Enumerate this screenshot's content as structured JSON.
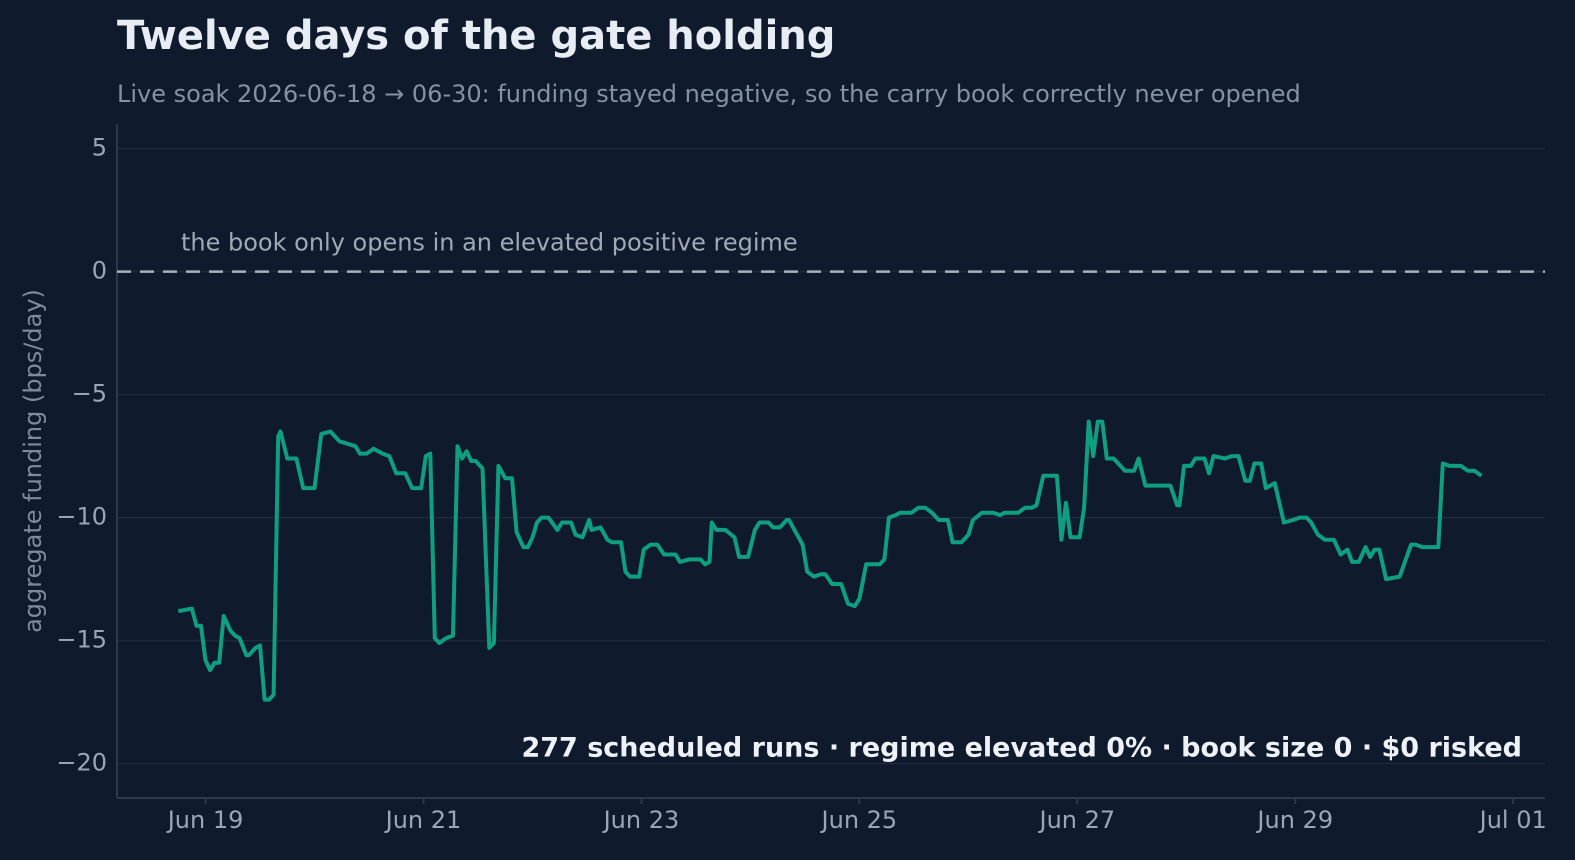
{
  "chart_data": {
    "type": "line",
    "title": "Twelve days of the gate holding",
    "subtitle": "Live soak 2026-06-18 → 06-30: funding stayed negative, so the carry book correctly never opened",
    "y_label": "aggregate funding (bps/day)",
    "annotation": "277 scheduled runs · regime elevated 0% · book size 0 · $0 risked",
    "reference_line": {
      "value": 0,
      "label": "the book only opens in an elevated positive regime"
    },
    "xlim": [
      "2026-06-18T04:30",
      "2026-07-01T07:00"
    ],
    "xticks": [
      {
        "value": "2026-06-19T00:00",
        "label": "Jun 19"
      },
      {
        "value": "2026-06-21T00:00",
        "label": "Jun 21"
      },
      {
        "value": "2026-06-23T00:00",
        "label": "Jun 23"
      },
      {
        "value": "2026-06-25T00:00",
        "label": "Jun 25"
      },
      {
        "value": "2026-06-27T00:00",
        "label": "Jun 27"
      },
      {
        "value": "2026-06-29T00:00",
        "label": "Jun 29"
      },
      {
        "value": "2026-07-01T00:00",
        "label": "Jul 01"
      }
    ],
    "ylim": [
      -21.4,
      6
    ],
    "yticks": [
      {
        "value": -20,
        "label": "−20"
      },
      {
        "value": -15,
        "label": "−15"
      },
      {
        "value": -10,
        "label": "−10"
      },
      {
        "value": -5,
        "label": "−5"
      },
      0,
      5
    ],
    "grid": true,
    "x": [
      "2026-06-18T18:00",
      "2026-06-18T21:00",
      "2026-06-18T22:00",
      "2026-06-18T23:00",
      "2026-06-19T00:00",
      "2026-06-19T01:00",
      "2026-06-19T02:00",
      "2026-06-19T03:00",
      "2026-06-19T04:00",
      "2026-06-19T05:30",
      "2026-06-19T06:30",
      "2026-06-19T07:30",
      "2026-06-19T09:00",
      "2026-06-19T09:30",
      "2026-06-19T11:00",
      "2026-06-19T12:00",
      "2026-06-19T13:00",
      "2026-06-19T14:00",
      "2026-06-19T15:00",
      "2026-06-19T16:00",
      "2026-06-19T16:30",
      "2026-06-19T18:00",
      "2026-06-19T20:00",
      "2026-06-19T21:30",
      "2026-06-20T00:00",
      "2026-06-20T01:30",
      "2026-06-20T03:30",
      "2026-06-20T05:30",
      "2026-06-20T09:00",
      "2026-06-20T10:00",
      "2026-06-20T11:30",
      "2026-06-20T13:00",
      "2026-06-20T15:00",
      "2026-06-20T16:30",
      "2026-06-20T18:00",
      "2026-06-20T20:00",
      "2026-06-20T21:30",
      "2026-06-20T23:30",
      "2026-06-21T00:30",
      "2026-06-21T01:30",
      "2026-06-21T02:30",
      "2026-06-21T03:30",
      "2026-06-21T05:00",
      "2026-06-21T06:30",
      "2026-06-21T07:30",
      "2026-06-21T08:30",
      "2026-06-21T09:30",
      "2026-06-21T10:30",
      "2026-06-21T11:30",
      "2026-06-21T13:00",
      "2026-06-21T14:30",
      "2026-06-21T15:30",
      "2026-06-21T16:30",
      "2026-06-21T18:00",
      "2026-06-21T19:30",
      "2026-06-21T20:30",
      "2026-06-21T22:00",
      "2026-06-21T23:00",
      "2026-06-22T00:00",
      "2026-06-22T01:00",
      "2026-06-22T02:00",
      "2026-06-22T03:30",
      "2026-06-22T05:30",
      "2026-06-22T06:30",
      "2026-06-22T08:30",
      "2026-06-22T09:30",
      "2026-06-22T11:00",
      "2026-06-22T12:30",
      "2026-06-22T13:00",
      "2026-06-22T15:00",
      "2026-06-22T16:30",
      "2026-06-22T17:30",
      "2026-06-22T19:30",
      "2026-06-22T20:30",
      "2026-06-22T21:30",
      "2026-06-22T23:30",
      "2026-06-23T00:30",
      "2026-06-23T02:00",
      "2026-06-23T03:30",
      "2026-06-23T05:00",
      "2026-06-23T07:30",
      "2026-06-23T08:30",
      "2026-06-23T10:30",
      "2026-06-23T13:00",
      "2026-06-23T14:00",
      "2026-06-23T15:00",
      "2026-06-23T15:30",
      "2026-06-23T16:30",
      "2026-06-23T18:30",
      "2026-06-23T20:30",
      "2026-06-23T21:30",
      "2026-06-23T23:30",
      "2026-06-24T01:00",
      "2026-06-24T02:00",
      "2026-06-24T04:00",
      "2026-06-24T05:00",
      "2026-06-24T06:30",
      "2026-06-24T08:00",
      "2026-06-24T08:30",
      "2026-06-24T10:00",
      "2026-06-24T11:30",
      "2026-06-24T12:30",
      "2026-06-24T14:00",
      "2026-06-24T15:30",
      "2026-06-24T16:30",
      "2026-06-24T18:00",
      "2026-06-24T20:00",
      "2026-06-24T21:30",
      "2026-06-24T23:00",
      "2026-06-25T00:00",
      "2026-06-25T01:30",
      "2026-06-25T04:30",
      "2026-06-25T05:30",
      "2026-06-25T06:30",
      "2026-06-25T08:00",
      "2026-06-25T09:00",
      "2026-06-25T11:30",
      "2026-06-25T13:00",
      "2026-06-25T14:30",
      "2026-06-25T16:00",
      "2026-06-25T17:30",
      "2026-06-25T19:30",
      "2026-06-25T20:30",
      "2026-06-25T22:30",
      "2026-06-26T00:00",
      "2026-06-26T01:00",
      "2026-06-26T03:00",
      "2026-06-26T05:30",
      "2026-06-26T07:00",
      "2026-06-26T08:00",
      "2026-06-26T11:00",
      "2026-06-26T12:30",
      "2026-06-26T14:00",
      "2026-06-26T15:00",
      "2026-06-26T16:30",
      "2026-06-26T19:30",
      "2026-06-26T20:30",
      "2026-06-26T21:30",
      "2026-06-26T22:30",
      "2026-06-27T00:30",
      "2026-06-27T01:30",
      "2026-06-27T02:30",
      "2026-06-27T03:30",
      "2026-06-27T04:30",
      "2026-06-27T05:30",
      "2026-06-27T06:30",
      "2026-06-27T08:00",
      "2026-06-27T09:30",
      "2026-06-27T10:30",
      "2026-06-27T12:30",
      "2026-06-27T13:30",
      "2026-06-27T15:00",
      "2026-06-27T20:30",
      "2026-06-27T22:00",
      "2026-06-27T22:30",
      "2026-06-27T23:30",
      "2026-06-28T01:00",
      "2026-06-28T02:00",
      "2026-06-28T04:00",
      "2026-06-28T05:00",
      "2026-06-28T06:00",
      "2026-06-28T08:30",
      "2026-06-28T10:00",
      "2026-06-28T11:30",
      "2026-06-28T13:00",
      "2026-06-28T14:00",
      "2026-06-28T15:00",
      "2026-06-28T16:30",
      "2026-06-28T17:30",
      "2026-06-28T19:30",
      "2026-06-28T21:30",
      "2026-06-28T23:30",
      "2026-06-29T01:00",
      "2026-06-29T02:30",
      "2026-06-29T03:30",
      "2026-06-29T05:00",
      "2026-06-29T06:30",
      "2026-06-29T08:30",
      "2026-06-29T10:00",
      "2026-06-29T11:30",
      "2026-06-29T12:30",
      "2026-06-29T14:00",
      "2026-06-29T15:30",
      "2026-06-29T16:30",
      "2026-06-29T17:30",
      "2026-06-29T18:30",
      "2026-06-29T20:00",
      "2026-06-29T23:00",
      "2026-06-30T01:30",
      "2026-06-30T02:30",
      "2026-06-30T04:00",
      "2026-06-30T07:30",
      "2026-06-30T08:30",
      "2026-06-30T10:00",
      "2026-06-30T12:30",
      "2026-06-30T14:00",
      "2026-06-30T15:30",
      "2026-06-30T17:00"
    ],
    "series": [
      {
        "name": "aggregate funding",
        "color": "#0f9e80",
        "values": [
          -13.8,
          -13.7,
          -14.4,
          -14.4,
          -15.8,
          -16.2,
          -15.9,
          -15.9,
          -14.0,
          -14.6,
          -14.8,
          -14.9,
          -15.6,
          -15.6,
          -15.3,
          -15.2,
          -17.4,
          -17.4,
          -17.2,
          -6.7,
          -6.5,
          -7.6,
          -7.6,
          -8.8,
          -8.8,
          -6.6,
          -6.5,
          -6.9,
          -7.1,
          -7.4,
          -7.4,
          -7.2,
          -7.4,
          -7.5,
          -8.2,
          -8.2,
          -8.8,
          -8.8,
          -7.5,
          -7.4,
          -14.9,
          -15.1,
          -14.9,
          -14.8,
          -7.1,
          -7.6,
          -7.3,
          -7.7,
          -7.7,
          -8.0,
          -15.3,
          -15.1,
          -7.9,
          -8.4,
          -8.4,
          -10.6,
          -11.2,
          -11.2,
          -10.8,
          -10.2,
          -10.0,
          -10.0,
          -10.5,
          -10.2,
          -10.2,
          -10.7,
          -10.8,
          -10.1,
          -10.5,
          -10.4,
          -10.9,
          -11.0,
          -11.0,
          -12.2,
          -12.4,
          -12.4,
          -11.3,
          -11.1,
          -11.1,
          -11.5,
          -11.5,
          -11.8,
          -11.7,
          -11.7,
          -11.9,
          -11.8,
          -10.2,
          -10.5,
          -10.5,
          -10.8,
          -11.6,
          -11.6,
          -10.5,
          -10.2,
          -10.2,
          -10.4,
          -10.4,
          -10.1,
          -10.1,
          -10.6,
          -11.1,
          -12.2,
          -12.4,
          -12.3,
          -12.3,
          -12.7,
          -12.7,
          -13.5,
          -13.6,
          -13.3,
          -11.9,
          -11.9,
          -11.7,
          -10.0,
          -9.9,
          -9.8,
          -9.8,
          -9.6,
          -9.6,
          -9.8,
          -10.1,
          -10.1,
          -11.0,
          -11.0,
          -10.7,
          -10.1,
          -9.8,
          -9.8,
          -9.9,
          -9.8,
          -9.8,
          -9.6,
          -9.6,
          -9.5,
          -8.3,
          -8.3,
          -10.9,
          -9.4,
          -10.8,
          -10.8,
          -9.6,
          -6.1,
          -7.5,
          -6.1,
          -6.1,
          -7.6,
          -7.6,
          -7.9,
          -8.1,
          -8.1,
          -7.6,
          -8.7,
          -8.7,
          -9.5,
          -9.5,
          -7.9,
          -7.9,
          -7.6,
          -7.6,
          -8.2,
          -7.5,
          -7.6,
          -7.5,
          -7.5,
          -8.5,
          -8.5,
          -7.8,
          -7.8,
          -8.8,
          -8.6,
          -10.2,
          -10.1,
          -10.0,
          -10.0,
          -10.2,
          -10.7,
          -10.9,
          -10.9,
          -11.5,
          -11.3,
          -11.8,
          -11.8,
          -11.2,
          -11.6,
          -11.3,
          -11.3,
          -12.5,
          -12.4,
          -11.1,
          -11.1,
          -11.2,
          -11.2,
          -7.8,
          -7.9,
          -7.9,
          -8.1,
          -8.1,
          -8.3
        ]
      }
    ]
  }
}
